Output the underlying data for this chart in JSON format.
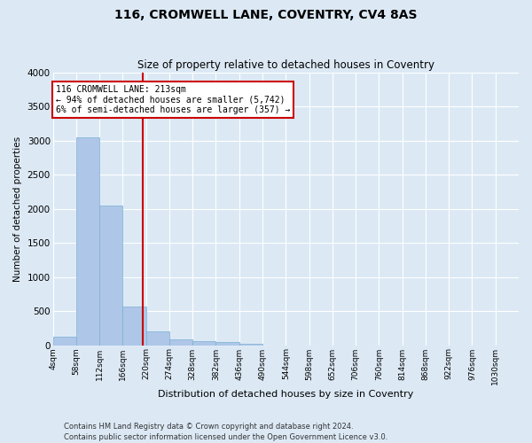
{
  "title": "116, CROMWELL LANE, COVENTRY, CV4 8AS",
  "subtitle": "Size of property relative to detached houses in Coventry",
  "xlabel": "Distribution of detached houses by size in Coventry",
  "ylabel": "Number of detached properties",
  "footer_line1": "Contains HM Land Registry data © Crown copyright and database right 2024.",
  "footer_line2": "Contains public sector information licensed under the Open Government Licence v3.0.",
  "annotation_line1": "116 CROMWELL LANE: 213sqm",
  "annotation_line2": "← 94% of detached houses are smaller (5,742)",
  "annotation_line3": "6% of semi-detached houses are larger (357) →",
  "property_size": 213,
  "bar_color": "#aec6e8",
  "bar_edge_color": "#7bafd4",
  "vline_color": "#cc0000",
  "annotation_box_color": "#cc0000",
  "fig_background_color": "#dce9f5",
  "axes_background_color": "#dce9f5",
  "grid_color": "#ffffff",
  "ylim": [
    0,
    4000
  ],
  "yticks": [
    0,
    500,
    1000,
    1500,
    2000,
    2500,
    3000,
    3500,
    4000
  ],
  "bin_edges": [
    4,
    58,
    112,
    166,
    220,
    274,
    328,
    382,
    436,
    490,
    544,
    598,
    652,
    706,
    760,
    814,
    868,
    922,
    976,
    1030,
    1084
  ],
  "bar_heights": [
    130,
    3050,
    2050,
    560,
    200,
    80,
    55,
    45,
    20,
    0,
    0,
    0,
    0,
    0,
    0,
    0,
    0,
    0,
    0,
    0
  ]
}
